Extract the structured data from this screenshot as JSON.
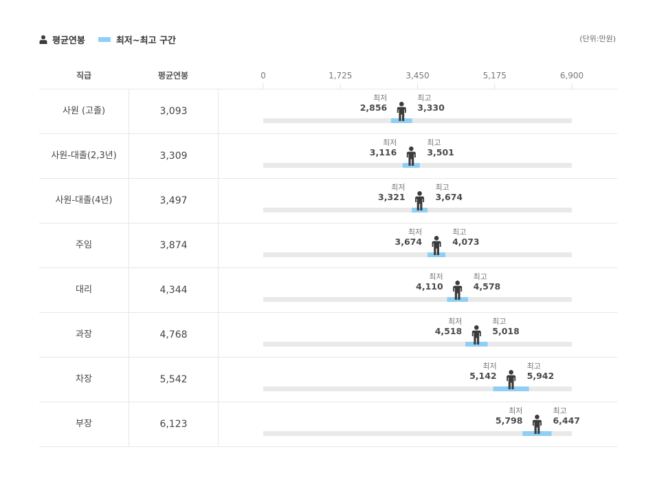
{
  "legend": {
    "avg_label": "평균연봉",
    "range_label": "최저~최고 구간"
  },
  "unit_label": "(단위:만원)",
  "header": {
    "rank": "직급",
    "avg": "평균연봉"
  },
  "colors": {
    "track": "#e9e9e9",
    "range": "#8fcff4",
    "person": "#3b3b3b",
    "text_value": "#4a4a4a",
    "text_label": "#777777"
  },
  "chart_data": {
    "type": "range",
    "xlim": [
      0,
      6900
    ],
    "ticks": [
      "0",
      "1,725",
      "3,450",
      "5,175",
      "6,900"
    ],
    "tick_values": [
      0,
      1725,
      3450,
      5175,
      6900
    ],
    "min_label": "최저",
    "max_label": "최고",
    "rows": [
      {
        "rank": "사원 (고졸)",
        "avg": 3093,
        "avg_text": "3,093",
        "min": 2856,
        "min_text": "2,856",
        "max": 3330,
        "max_text": "3,330"
      },
      {
        "rank": "사원-대졸(2,3년)",
        "avg": 3309,
        "avg_text": "3,309",
        "min": 3116,
        "min_text": "3,116",
        "max": 3501,
        "max_text": "3,501"
      },
      {
        "rank": "사원-대졸(4년)",
        "avg": 3497,
        "avg_text": "3,497",
        "min": 3321,
        "min_text": "3,321",
        "max": 3674,
        "max_text": "3,674"
      },
      {
        "rank": "주임",
        "avg": 3874,
        "avg_text": "3,874",
        "min": 3674,
        "min_text": "3,674",
        "max": 4073,
        "max_text": "4,073"
      },
      {
        "rank": "대리",
        "avg": 4344,
        "avg_text": "4,344",
        "min": 4110,
        "min_text": "4,110",
        "max": 4578,
        "max_text": "4,578"
      },
      {
        "rank": "과장",
        "avg": 4768,
        "avg_text": "4,768",
        "min": 4518,
        "min_text": "4,518",
        "max": 5018,
        "max_text": "5,018"
      },
      {
        "rank": "차장",
        "avg": 5542,
        "avg_text": "5,542",
        "min": 5142,
        "min_text": "5,142",
        "max": 5942,
        "max_text": "5,942"
      },
      {
        "rank": "부장",
        "avg": 6123,
        "avg_text": "6,123",
        "min": 5798,
        "min_text": "5,798",
        "max": 6447,
        "max_text": "6,447"
      }
    ]
  }
}
